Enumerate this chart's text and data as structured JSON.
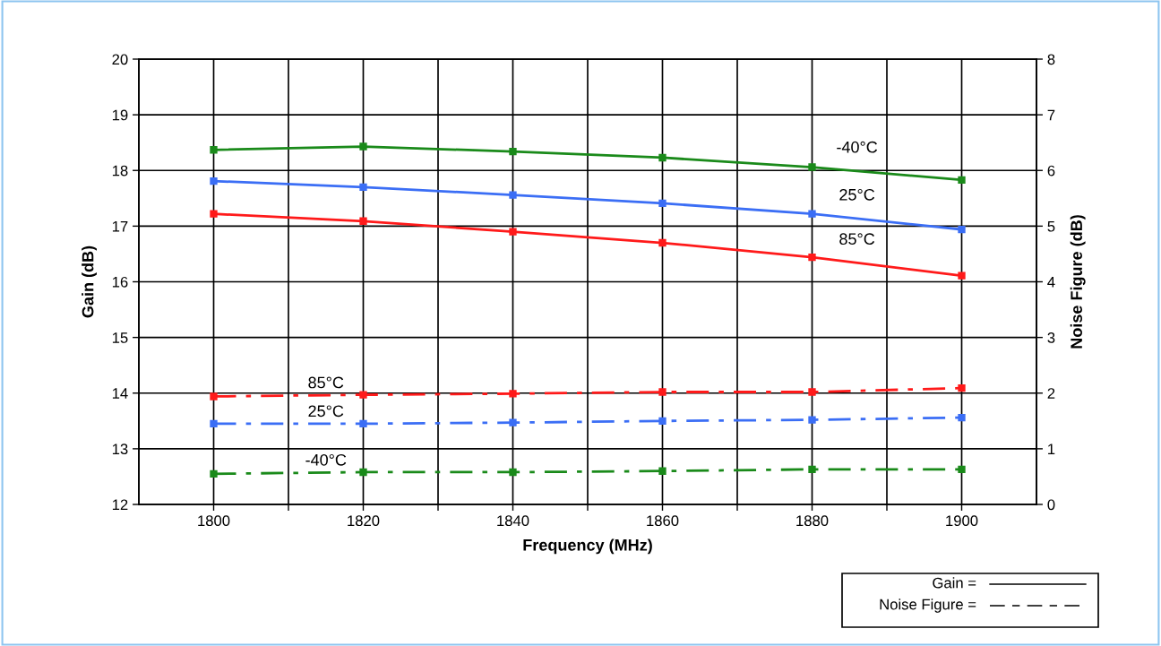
{
  "chart_data": {
    "type": "line",
    "xlabel": "Frequency (MHz)",
    "ylabel": "Gain (dB)",
    "y2label": "Noise Figure (dB)",
    "x": [
      1800,
      1820,
      1840,
      1860,
      1880,
      1900
    ],
    "xlim": [
      1790,
      1910
    ],
    "xticks": [
      1800,
      {
        "value": 1810,
        "label": null
      },
      1820,
      {
        "value": 1830,
        "label": null
      },
      1840,
      {
        "value": 1850,
        "label": null
      },
      1860,
      {
        "value": 1870,
        "label": null
      },
      1880,
      {
        "value": 1890,
        "label": null
      },
      1900
    ],
    "ylim": [
      12,
      20
    ],
    "yticks": [
      12,
      13,
      14,
      15,
      16,
      17,
      18,
      19,
      20
    ],
    "y2lim": [
      0,
      8
    ],
    "y2ticks": [
      0,
      1,
      2,
      3,
      4,
      5,
      6,
      7,
      8
    ],
    "grid": true,
    "marker": "square",
    "series": [
      {
        "name": "-40°C",
        "color": "#1a8a1a",
        "values": [
          18.37,
          18.43,
          18.34,
          18.23,
          18.06,
          17.83
        ],
        "line_style": "solid"
      },
      {
        "name": "25°C",
        "color": "#3b6ef5",
        "values": [
          17.81,
          17.7,
          17.56,
          17.41,
          17.22,
          16.94
        ],
        "line_style": "solid"
      },
      {
        "name": "85°C",
        "color": "#ff1a1a",
        "values": [
          17.22,
          17.09,
          16.9,
          16.7,
          16.44,
          16.11
        ],
        "line_style": "solid"
      },
      {
        "name": "85°C",
        "color": "#ff1a1a",
        "values": [
          1.94,
          1.97,
          1.99,
          2.02,
          2.02,
          2.09
        ],
        "axis": "y2",
        "line_style": "dashed"
      },
      {
        "name": "25°C",
        "color": "#3b6ef5",
        "values": [
          1.45,
          1.45,
          1.47,
          1.5,
          1.52,
          1.56
        ],
        "axis": "y2",
        "line_style": "dashed"
      },
      {
        "name": "-40°C",
        "color": "#1a8a1a",
        "values": [
          0.55,
          0.58,
          0.58,
          0.6,
          0.63,
          0.63
        ],
        "axis": "y2",
        "line_style": "dashed"
      }
    ],
    "annotations": [
      "Gain =",
      "Noise Figure ="
    ]
  }
}
